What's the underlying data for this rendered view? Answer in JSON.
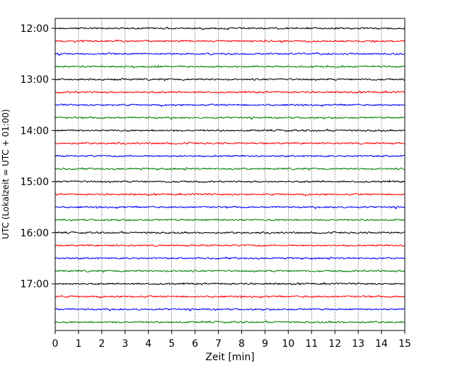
{
  "chart_data": {
    "type": "line",
    "xlabel": "Zeit  [min]",
    "ylabel": "UTC (Lokalzeit = UTC + 01:00)",
    "xlim": [
      0,
      15
    ],
    "x_ticks": [
      "0",
      "1",
      "2",
      "3",
      "4",
      "5",
      "6",
      "7",
      "8",
      "9",
      "10",
      "11",
      "12",
      "13",
      "14",
      "15"
    ],
    "y_ticks": [
      "12:00",
      "13:00",
      "14:00",
      "15:00",
      "16:00",
      "17:00"
    ],
    "y_tick_rows": [
      0,
      4,
      8,
      12,
      16,
      20
    ],
    "row_minutes": 15,
    "start_time": "12:00",
    "trace_count": 24,
    "trace_colors": [
      "#000000",
      "#ff0000",
      "#0000ff",
      "#008000"
    ],
    "grid": "vertical dotted lines at each minute"
  }
}
